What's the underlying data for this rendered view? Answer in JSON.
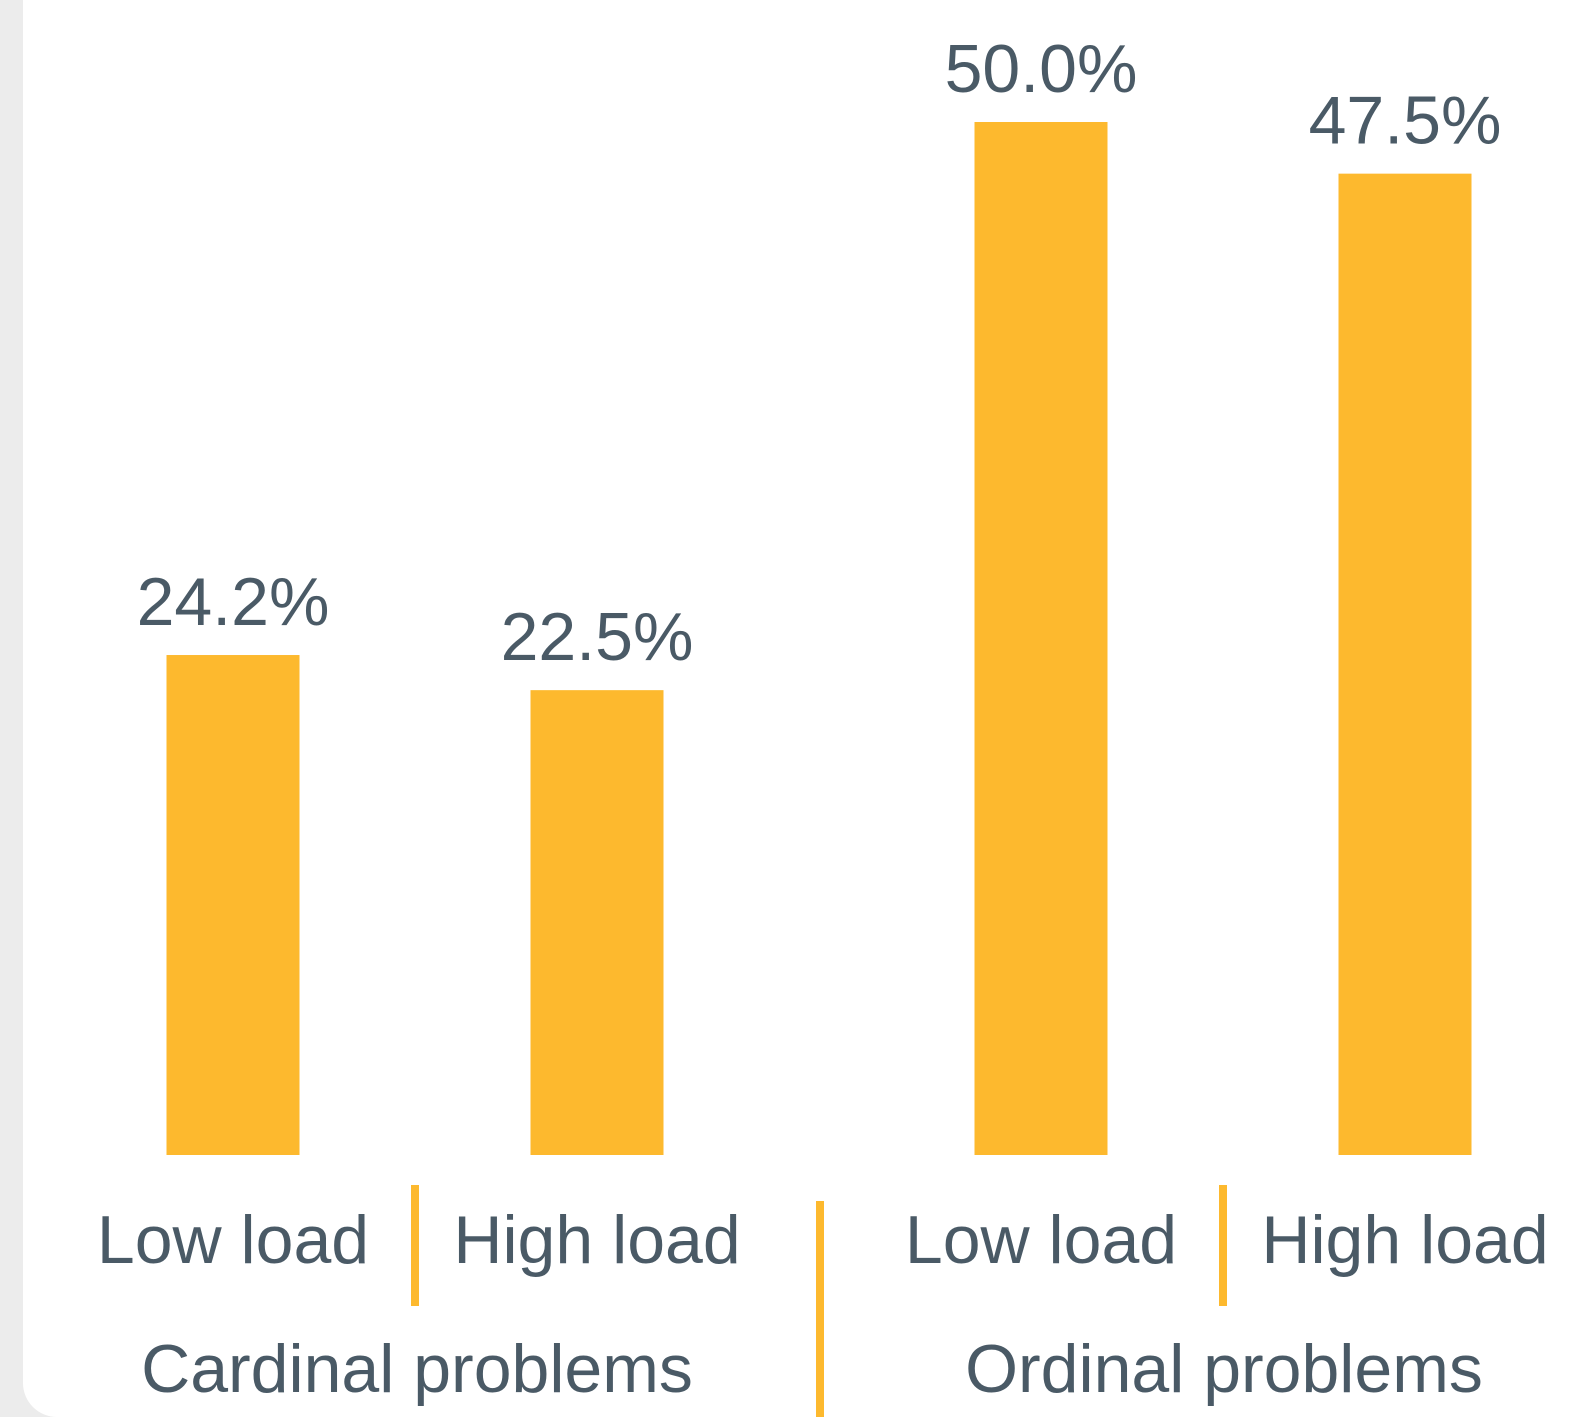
{
  "chart_data": {
    "type": "bar",
    "groups": [
      {
        "name": "Cardinal problems",
        "bars": [
          {
            "label": "Low load",
            "value": 24.2,
            "value_label": "24.2%"
          },
          {
            "label": "High load",
            "value": 22.5,
            "value_label": "22.5%"
          }
        ]
      },
      {
        "name": "Ordinal problems",
        "bars": [
          {
            "label": "Low load",
            "value": 50.0,
            "value_label": "50.0%"
          },
          {
            "label": "High load",
            "value": 47.5,
            "value_label": "47.5%"
          }
        ]
      }
    ],
    "unit": "%",
    "ylim": [
      0,
      50
    ],
    "grid": false,
    "legend": "none",
    "bar_color": "#FDB92E",
    "text_color": "#4A5A66",
    "separator_color": "#FDB92E"
  }
}
